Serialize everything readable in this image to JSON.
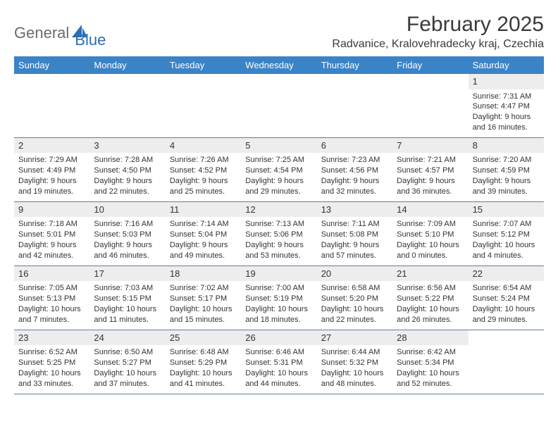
{
  "logo": {
    "text1": "General",
    "text2": "Blue"
  },
  "title": "February 2025",
  "location": "Radvanice, Kralovehradecky kraj, Czechia",
  "colors": {
    "header_bg": "#3b83c7",
    "header_text": "#ffffff",
    "daynum_bg": "#ededed",
    "row_border": "#5b7fa3",
    "body_text": "#333333",
    "logo_gray": "#6b6b6b",
    "logo_blue": "#2a6fb5"
  },
  "day_names": [
    "Sunday",
    "Monday",
    "Tuesday",
    "Wednesday",
    "Thursday",
    "Friday",
    "Saturday"
  ],
  "weeks": [
    [
      null,
      null,
      null,
      null,
      null,
      null,
      {
        "n": "1",
        "sr": "Sunrise: 7:31 AM",
        "ss": "Sunset: 4:47 PM",
        "dl": "Daylight: 9 hours and 16 minutes."
      }
    ],
    [
      {
        "n": "2",
        "sr": "Sunrise: 7:29 AM",
        "ss": "Sunset: 4:49 PM",
        "dl": "Daylight: 9 hours and 19 minutes."
      },
      {
        "n": "3",
        "sr": "Sunrise: 7:28 AM",
        "ss": "Sunset: 4:50 PM",
        "dl": "Daylight: 9 hours and 22 minutes."
      },
      {
        "n": "4",
        "sr": "Sunrise: 7:26 AM",
        "ss": "Sunset: 4:52 PM",
        "dl": "Daylight: 9 hours and 25 minutes."
      },
      {
        "n": "5",
        "sr": "Sunrise: 7:25 AM",
        "ss": "Sunset: 4:54 PM",
        "dl": "Daylight: 9 hours and 29 minutes."
      },
      {
        "n": "6",
        "sr": "Sunrise: 7:23 AM",
        "ss": "Sunset: 4:56 PM",
        "dl": "Daylight: 9 hours and 32 minutes."
      },
      {
        "n": "7",
        "sr": "Sunrise: 7:21 AM",
        "ss": "Sunset: 4:57 PM",
        "dl": "Daylight: 9 hours and 36 minutes."
      },
      {
        "n": "8",
        "sr": "Sunrise: 7:20 AM",
        "ss": "Sunset: 4:59 PM",
        "dl": "Daylight: 9 hours and 39 minutes."
      }
    ],
    [
      {
        "n": "9",
        "sr": "Sunrise: 7:18 AM",
        "ss": "Sunset: 5:01 PM",
        "dl": "Daylight: 9 hours and 42 minutes."
      },
      {
        "n": "10",
        "sr": "Sunrise: 7:16 AM",
        "ss": "Sunset: 5:03 PM",
        "dl": "Daylight: 9 hours and 46 minutes."
      },
      {
        "n": "11",
        "sr": "Sunrise: 7:14 AM",
        "ss": "Sunset: 5:04 PM",
        "dl": "Daylight: 9 hours and 49 minutes."
      },
      {
        "n": "12",
        "sr": "Sunrise: 7:13 AM",
        "ss": "Sunset: 5:06 PM",
        "dl": "Daylight: 9 hours and 53 minutes."
      },
      {
        "n": "13",
        "sr": "Sunrise: 7:11 AM",
        "ss": "Sunset: 5:08 PM",
        "dl": "Daylight: 9 hours and 57 minutes."
      },
      {
        "n": "14",
        "sr": "Sunrise: 7:09 AM",
        "ss": "Sunset: 5:10 PM",
        "dl": "Daylight: 10 hours and 0 minutes."
      },
      {
        "n": "15",
        "sr": "Sunrise: 7:07 AM",
        "ss": "Sunset: 5:12 PM",
        "dl": "Daylight: 10 hours and 4 minutes."
      }
    ],
    [
      {
        "n": "16",
        "sr": "Sunrise: 7:05 AM",
        "ss": "Sunset: 5:13 PM",
        "dl": "Daylight: 10 hours and 7 minutes."
      },
      {
        "n": "17",
        "sr": "Sunrise: 7:03 AM",
        "ss": "Sunset: 5:15 PM",
        "dl": "Daylight: 10 hours and 11 minutes."
      },
      {
        "n": "18",
        "sr": "Sunrise: 7:02 AM",
        "ss": "Sunset: 5:17 PM",
        "dl": "Daylight: 10 hours and 15 minutes."
      },
      {
        "n": "19",
        "sr": "Sunrise: 7:00 AM",
        "ss": "Sunset: 5:19 PM",
        "dl": "Daylight: 10 hours and 18 minutes."
      },
      {
        "n": "20",
        "sr": "Sunrise: 6:58 AM",
        "ss": "Sunset: 5:20 PM",
        "dl": "Daylight: 10 hours and 22 minutes."
      },
      {
        "n": "21",
        "sr": "Sunrise: 6:56 AM",
        "ss": "Sunset: 5:22 PM",
        "dl": "Daylight: 10 hours and 26 minutes."
      },
      {
        "n": "22",
        "sr": "Sunrise: 6:54 AM",
        "ss": "Sunset: 5:24 PM",
        "dl": "Daylight: 10 hours and 29 minutes."
      }
    ],
    [
      {
        "n": "23",
        "sr": "Sunrise: 6:52 AM",
        "ss": "Sunset: 5:25 PM",
        "dl": "Daylight: 10 hours and 33 minutes."
      },
      {
        "n": "24",
        "sr": "Sunrise: 6:50 AM",
        "ss": "Sunset: 5:27 PM",
        "dl": "Daylight: 10 hours and 37 minutes."
      },
      {
        "n": "25",
        "sr": "Sunrise: 6:48 AM",
        "ss": "Sunset: 5:29 PM",
        "dl": "Daylight: 10 hours and 41 minutes."
      },
      {
        "n": "26",
        "sr": "Sunrise: 6:46 AM",
        "ss": "Sunset: 5:31 PM",
        "dl": "Daylight: 10 hours and 44 minutes."
      },
      {
        "n": "27",
        "sr": "Sunrise: 6:44 AM",
        "ss": "Sunset: 5:32 PM",
        "dl": "Daylight: 10 hours and 48 minutes."
      },
      {
        "n": "28",
        "sr": "Sunrise: 6:42 AM",
        "ss": "Sunset: 5:34 PM",
        "dl": "Daylight: 10 hours and 52 minutes."
      },
      null
    ]
  ]
}
